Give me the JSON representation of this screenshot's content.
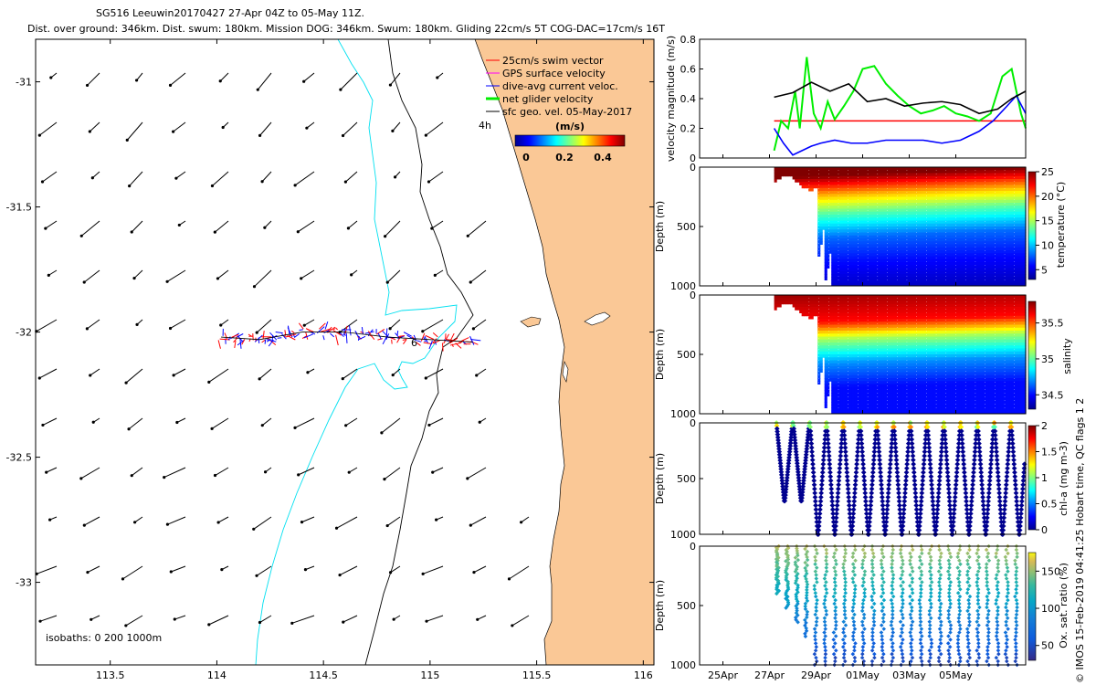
{
  "header": {
    "line1": "SG516 Leeuwin20170427 27-Apr 04Z to 05-May 11Z.",
    "line2": "Dist. over ground: 346km. Dist. swum: 180km. Mission DOG: 346km. Swum: 180km. Gliding 22cm/s 5T COG-DAC=17cm/s 16T"
  },
  "colors": {
    "land": "#fac896",
    "isobath_200": "#00e0f0",
    "isobath_1000": "#000000",
    "swim": "#ff0000",
    "gps": "#ff00ff",
    "dac": "#0000ff",
    "net": "#00ee00",
    "geo": "#000000"
  },
  "chart_data": [
    {
      "id": "map",
      "type": "scatter",
      "title": "",
      "x_ticks": [
        "113.5",
        "114",
        "114.5",
        "115",
        "115.5",
        "116"
      ],
      "y_ticks": [
        "-31",
        "-31.5",
        "-32",
        "-32.5",
        "-33"
      ],
      "xlim": [
        113.15,
        116.05
      ],
      "ylim": [
        -33.33,
        -30.83
      ],
      "legend": [
        {
          "label": "25cm/s swim vector",
          "color": "#ff0000"
        },
        {
          "label": "GPS surface velocity",
          "color": "#ff00ff"
        },
        {
          "label": "dive-avg current veloc.",
          "color": "#0000ff"
        },
        {
          "label": "net glider velocity",
          "color": "#00ee00"
        },
        {
          "label": "sfc geo. vel. 05-May-2017",
          "color": "#000000"
        }
      ],
      "colorbar": {
        "title": "(m/s)",
        "ticks": [
          "0",
          "0.2",
          "0.4"
        ],
        "range": [
          0,
          0.5
        ]
      },
      "annotations": [
        "4h",
        "6"
      ],
      "isobaths_label": "isobaths: 0   200  1000m",
      "track": {
        "lon": [
          114.02,
          114.2,
          114.4,
          114.6,
          114.8,
          115.0,
          115.2
        ],
        "lat": [
          -32.02,
          -32.03,
          -32.0,
          -32.0,
          -32.02,
          -32.03,
          -32.04
        ]
      },
      "geo_vectors_dir_deg": {
        "north": 225,
        "south": 205
      }
    },
    {
      "id": "velocity",
      "type": "line",
      "ylabel": "velocity magnitude (m/s)",
      "y_ticks": [
        "0",
        "0.2",
        "0.4",
        "0.6",
        "0.8"
      ],
      "ylim": [
        0,
        0.8
      ],
      "x_range_days": [
        0,
        14
      ],
      "x_ticks": [
        "25Apr",
        "27Apr",
        "29Apr",
        "01May",
        "03May",
        "05May"
      ],
      "series": [
        {
          "name": "swim",
          "color": "#ff0000",
          "x": [
            3.2,
            14
          ],
          "y": [
            0.25,
            0.25
          ]
        },
        {
          "name": "net glider",
          "color": "#00ee00",
          "x": [
            3.2,
            3.5,
            3.8,
            4.1,
            4.3,
            4.6,
            4.9,
            5.2,
            5.5,
            5.8,
            6.2,
            6.6,
            7.0,
            7.5,
            8.0,
            8.5,
            9.0,
            9.5,
            10.0,
            10.5,
            11.0,
            11.5,
            12.0,
            12.5,
            13.0,
            13.4,
            13.8,
            14.0
          ],
          "y": [
            0.05,
            0.25,
            0.2,
            0.45,
            0.2,
            0.68,
            0.3,
            0.2,
            0.38,
            0.26,
            0.35,
            0.45,
            0.6,
            0.62,
            0.5,
            0.42,
            0.35,
            0.3,
            0.32,
            0.35,
            0.3,
            0.28,
            0.25,
            0.3,
            0.55,
            0.6,
            0.3,
            0.2
          ]
        },
        {
          "name": "dive-avg current",
          "color": "#0000ff",
          "x": [
            3.2,
            3.6,
            4.0,
            4.4,
            4.8,
            5.2,
            5.8,
            6.5,
            7.2,
            8.0,
            8.8,
            9.6,
            10.4,
            11.2,
            12.0,
            12.6,
            13.2,
            13.6,
            14.0
          ],
          "y": [
            0.2,
            0.1,
            0.02,
            0.05,
            0.08,
            0.1,
            0.12,
            0.1,
            0.1,
            0.12,
            0.12,
            0.12,
            0.1,
            0.12,
            0.18,
            0.25,
            0.35,
            0.42,
            0.3
          ]
        },
        {
          "name": "sfc geo vel",
          "color": "#000000",
          "x": [
            3.2,
            4.0,
            4.8,
            5.6,
            6.4,
            7.2,
            8.0,
            8.8,
            9.6,
            10.4,
            11.2,
            12.0,
            12.8,
            13.4,
            14.0
          ],
          "y": [
            0.41,
            0.44,
            0.51,
            0.45,
            0.5,
            0.38,
            0.4,
            0.35,
            0.37,
            0.38,
            0.36,
            0.3,
            0.33,
            0.4,
            0.45
          ]
        }
      ]
    },
    {
      "id": "temperature",
      "type": "heatmap",
      "ylabel": "Depth (m)",
      "y_ticks": [
        "0",
        "500",
        "1000"
      ],
      "ylim": [
        1000,
        0
      ],
      "colorbar": {
        "label": "temperature (°C)",
        "ticks": [
          "25",
          "20",
          "15",
          "10",
          "5"
        ],
        "range": [
          3,
          25
        ]
      },
      "profile_depth_m": [
        0,
        150,
        300,
        500,
        700,
        1000
      ],
      "profile_values": [
        24,
        18,
        13,
        8,
        6,
        4
      ]
    },
    {
      "id": "salinity",
      "type": "heatmap",
      "ylabel": "Depth (m)",
      "y_ticks": [
        "0",
        "500",
        "1000"
      ],
      "ylim": [
        1000,
        0
      ],
      "colorbar": {
        "label": "salinity",
        "ticks": [
          "35.5",
          "35",
          "34.5"
        ],
        "range": [
          34.3,
          35.8
        ]
      },
      "profile_depth_m": [
        0,
        150,
        300,
        500,
        700,
        1000
      ],
      "profile_values": [
        35.7,
        35.6,
        35.1,
        34.7,
        34.5,
        34.5
      ]
    },
    {
      "id": "chla",
      "type": "scatter",
      "ylabel": "Depth (m)",
      "y_ticks": [
        "0",
        "500",
        "1000"
      ],
      "ylim": [
        1000,
        0
      ],
      "colorbar": {
        "label": "chl-a (mg m-3)",
        "ticks": [
          "2",
          "1.5",
          "1",
          "0.5",
          "0"
        ],
        "range": [
          0,
          2
        ]
      }
    },
    {
      "id": "oxygen",
      "type": "scatter",
      "ylabel": "Depth (m)",
      "y_ticks": [
        "0",
        "500",
        "1000"
      ],
      "ylim": [
        1000,
        0
      ],
      "colorbar": {
        "label": "Ox. sat. ratio (%)",
        "ticks": [
          "150",
          "100",
          "50"
        ],
        "range": [
          30,
          175
        ]
      }
    }
  ],
  "side_note": "© IMOS 15-Feb-2019 04:41:25 Hobart time, QC flags 1  2"
}
